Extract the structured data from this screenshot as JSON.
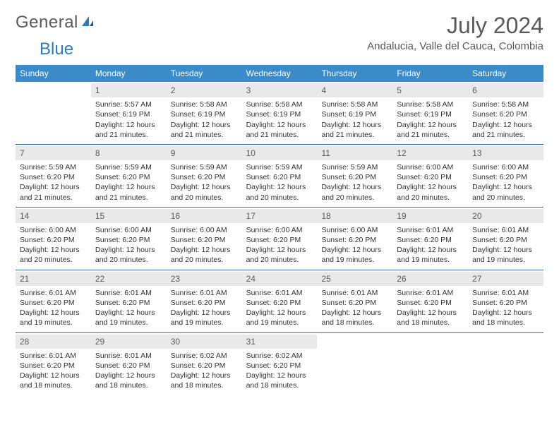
{
  "logo": {
    "word1": "General",
    "word2": "Blue"
  },
  "title": "July 2024",
  "location": "Andalucia, Valle del Cauca, Colombia",
  "colors": {
    "header_bg": "#3b8bc8",
    "header_text": "#ffffff",
    "row_divider": "#2e6ca8",
    "daynum_bg": "#e9e9e9",
    "text": "#333333",
    "title_text": "#5a5a5a",
    "logo_gray": "#5a5a5a",
    "logo_blue": "#2e7cc0"
  },
  "day_headers": [
    "Sunday",
    "Monday",
    "Tuesday",
    "Wednesday",
    "Thursday",
    "Friday",
    "Saturday"
  ],
  "weeks": [
    [
      {
        "empty": true
      },
      {
        "n": "1",
        "sunrise": "5:57 AM",
        "sunset": "6:19 PM",
        "daylight": "12 hours and 21 minutes."
      },
      {
        "n": "2",
        "sunrise": "5:58 AM",
        "sunset": "6:19 PM",
        "daylight": "12 hours and 21 minutes."
      },
      {
        "n": "3",
        "sunrise": "5:58 AM",
        "sunset": "6:19 PM",
        "daylight": "12 hours and 21 minutes."
      },
      {
        "n": "4",
        "sunrise": "5:58 AM",
        "sunset": "6:19 PM",
        "daylight": "12 hours and 21 minutes."
      },
      {
        "n": "5",
        "sunrise": "5:58 AM",
        "sunset": "6:19 PM",
        "daylight": "12 hours and 21 minutes."
      },
      {
        "n": "6",
        "sunrise": "5:58 AM",
        "sunset": "6:20 PM",
        "daylight": "12 hours and 21 minutes."
      }
    ],
    [
      {
        "n": "7",
        "sunrise": "5:59 AM",
        "sunset": "6:20 PM",
        "daylight": "12 hours and 21 minutes."
      },
      {
        "n": "8",
        "sunrise": "5:59 AM",
        "sunset": "6:20 PM",
        "daylight": "12 hours and 21 minutes."
      },
      {
        "n": "9",
        "sunrise": "5:59 AM",
        "sunset": "6:20 PM",
        "daylight": "12 hours and 20 minutes."
      },
      {
        "n": "10",
        "sunrise": "5:59 AM",
        "sunset": "6:20 PM",
        "daylight": "12 hours and 20 minutes."
      },
      {
        "n": "11",
        "sunrise": "5:59 AM",
        "sunset": "6:20 PM",
        "daylight": "12 hours and 20 minutes."
      },
      {
        "n": "12",
        "sunrise": "6:00 AM",
        "sunset": "6:20 PM",
        "daylight": "12 hours and 20 minutes."
      },
      {
        "n": "13",
        "sunrise": "6:00 AM",
        "sunset": "6:20 PM",
        "daylight": "12 hours and 20 minutes."
      }
    ],
    [
      {
        "n": "14",
        "sunrise": "6:00 AM",
        "sunset": "6:20 PM",
        "daylight": "12 hours and 20 minutes."
      },
      {
        "n": "15",
        "sunrise": "6:00 AM",
        "sunset": "6:20 PM",
        "daylight": "12 hours and 20 minutes."
      },
      {
        "n": "16",
        "sunrise": "6:00 AM",
        "sunset": "6:20 PM",
        "daylight": "12 hours and 20 minutes."
      },
      {
        "n": "17",
        "sunrise": "6:00 AM",
        "sunset": "6:20 PM",
        "daylight": "12 hours and 20 minutes."
      },
      {
        "n": "18",
        "sunrise": "6:00 AM",
        "sunset": "6:20 PM",
        "daylight": "12 hours and 19 minutes."
      },
      {
        "n": "19",
        "sunrise": "6:01 AM",
        "sunset": "6:20 PM",
        "daylight": "12 hours and 19 minutes."
      },
      {
        "n": "20",
        "sunrise": "6:01 AM",
        "sunset": "6:20 PM",
        "daylight": "12 hours and 19 minutes."
      }
    ],
    [
      {
        "n": "21",
        "sunrise": "6:01 AM",
        "sunset": "6:20 PM",
        "daylight": "12 hours and 19 minutes."
      },
      {
        "n": "22",
        "sunrise": "6:01 AM",
        "sunset": "6:20 PM",
        "daylight": "12 hours and 19 minutes."
      },
      {
        "n": "23",
        "sunrise": "6:01 AM",
        "sunset": "6:20 PM",
        "daylight": "12 hours and 19 minutes."
      },
      {
        "n": "24",
        "sunrise": "6:01 AM",
        "sunset": "6:20 PM",
        "daylight": "12 hours and 19 minutes."
      },
      {
        "n": "25",
        "sunrise": "6:01 AM",
        "sunset": "6:20 PM",
        "daylight": "12 hours and 18 minutes."
      },
      {
        "n": "26",
        "sunrise": "6:01 AM",
        "sunset": "6:20 PM",
        "daylight": "12 hours and 18 minutes."
      },
      {
        "n": "27",
        "sunrise": "6:01 AM",
        "sunset": "6:20 PM",
        "daylight": "12 hours and 18 minutes."
      }
    ],
    [
      {
        "n": "28",
        "sunrise": "6:01 AM",
        "sunset": "6:20 PM",
        "daylight": "12 hours and 18 minutes."
      },
      {
        "n": "29",
        "sunrise": "6:01 AM",
        "sunset": "6:20 PM",
        "daylight": "12 hours and 18 minutes."
      },
      {
        "n": "30",
        "sunrise": "6:02 AM",
        "sunset": "6:20 PM",
        "daylight": "12 hours and 18 minutes."
      },
      {
        "n": "31",
        "sunrise": "6:02 AM",
        "sunset": "6:20 PM",
        "daylight": "12 hours and 18 minutes."
      },
      {
        "empty": true
      },
      {
        "empty": true
      },
      {
        "empty": true
      }
    ]
  ],
  "labels": {
    "sunrise": "Sunrise:",
    "sunset": "Sunset:",
    "daylight": "Daylight:"
  }
}
